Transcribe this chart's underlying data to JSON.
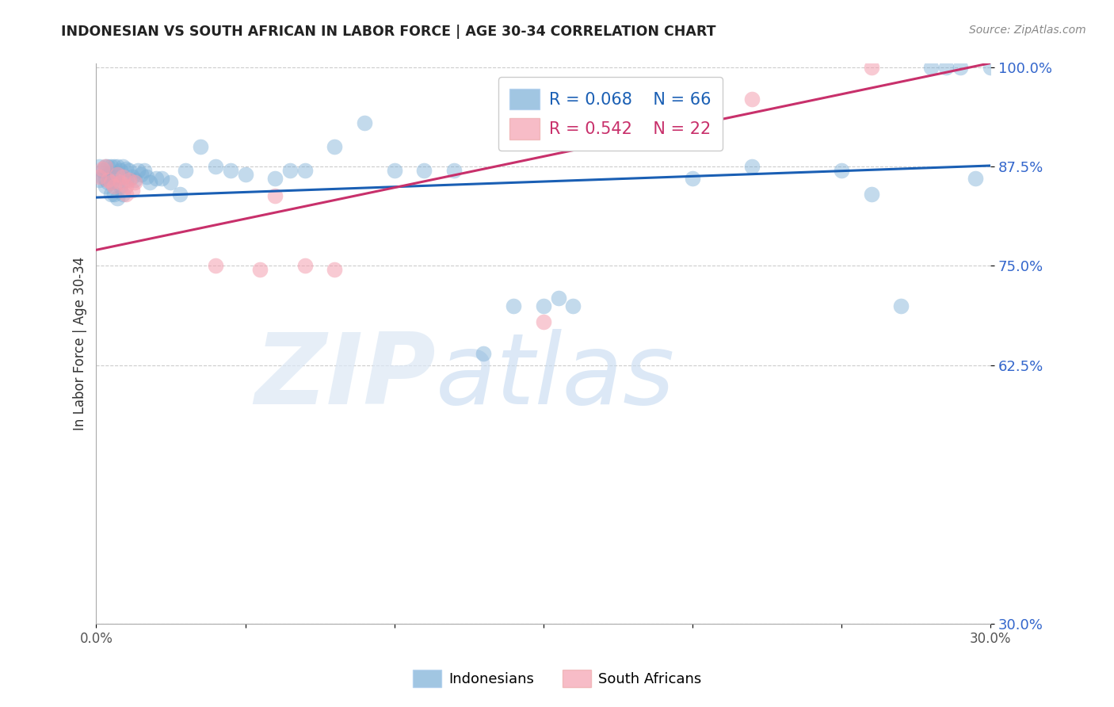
{
  "title": "INDONESIAN VS SOUTH AFRICAN IN LABOR FORCE | AGE 30-34 CORRELATION CHART",
  "source": "Source: ZipAtlas.com",
  "ylabel": "In Labor Force | Age 30-34",
  "xlim": [
    0.0,
    0.3
  ],
  "ylim": [
    0.3,
    1.005
  ],
  "yticks": [
    1.0,
    0.875,
    0.75,
    0.625,
    0.3
  ],
  "ytick_labels": [
    "100.0%",
    "87.5%",
    "75.0%",
    "62.5%",
    "30.0%"
  ],
  "xticks": [
    0.0,
    0.05,
    0.1,
    0.15,
    0.2,
    0.25,
    0.3
  ],
  "xtick_labels": [
    "0.0%",
    "",
    "",
    "",
    "",
    "",
    "30.0%"
  ],
  "legend_blue_r": "R = 0.068",
  "legend_blue_n": "N = 66",
  "legend_pink_r": "R = 0.542",
  "legend_pink_n": "N = 22",
  "blue_color": "#7aaed6",
  "pink_color": "#f4a0b0",
  "line_blue_color": "#1a5fb4",
  "line_pink_color": "#c8306b",
  "watermark_zip": "ZIP",
  "watermark_atlas": "atlas",
  "legend_label_blue": "Indonesians",
  "legend_label_pink": "South Africans",
  "indonesian_x": [
    0.001,
    0.001,
    0.002,
    0.002,
    0.003,
    0.003,
    0.003,
    0.004,
    0.004,
    0.004,
    0.005,
    0.005,
    0.005,
    0.005,
    0.006,
    0.006,
    0.006,
    0.007,
    0.007,
    0.007,
    0.008,
    0.008,
    0.009,
    0.009,
    0.01,
    0.01,
    0.011,
    0.012,
    0.013,
    0.014,
    0.015,
    0.016,
    0.017,
    0.018,
    0.02,
    0.022,
    0.025,
    0.028,
    0.03,
    0.035,
    0.04,
    0.045,
    0.05,
    0.06,
    0.065,
    0.07,
    0.08,
    0.09,
    0.1,
    0.11,
    0.12,
    0.13,
    0.14,
    0.15,
    0.155,
    0.16,
    0.2,
    0.22,
    0.25,
    0.26,
    0.27,
    0.28,
    0.285,
    0.29,
    0.295,
    0.3
  ],
  "indonesian_y": [
    0.875,
    0.858,
    0.87,
    0.862,
    0.875,
    0.86,
    0.85,
    0.875,
    0.865,
    0.855,
    0.875,
    0.862,
    0.855,
    0.84,
    0.875,
    0.862,
    0.84,
    0.875,
    0.855,
    0.835,
    0.87,
    0.85,
    0.875,
    0.84,
    0.872,
    0.858,
    0.87,
    0.862,
    0.858,
    0.87,
    0.865,
    0.87,
    0.862,
    0.855,
    0.86,
    0.86,
    0.855,
    0.84,
    0.87,
    0.9,
    0.875,
    0.87,
    0.865,
    0.86,
    0.87,
    0.87,
    0.9,
    0.93,
    0.87,
    0.87,
    0.87,
    0.64,
    0.7,
    0.7,
    0.71,
    0.7,
    0.86,
    0.875,
    0.87,
    0.84,
    0.7,
    1.0,
    1.0,
    1.0,
    0.86,
    1.0
  ],
  "southafrican_x": [
    0.001,
    0.002,
    0.003,
    0.004,
    0.005,
    0.006,
    0.007,
    0.008,
    0.009,
    0.01,
    0.01,
    0.011,
    0.012,
    0.013,
    0.04,
    0.055,
    0.06,
    0.07,
    0.08,
    0.15,
    0.22,
    0.26
  ],
  "southafrican_y": [
    0.862,
    0.872,
    0.875,
    0.858,
    0.855,
    0.85,
    0.865,
    0.855,
    0.862,
    0.85,
    0.84,
    0.858,
    0.845,
    0.855,
    0.75,
    0.745,
    0.838,
    0.75,
    0.745,
    0.68,
    0.96,
    1.0
  ],
  "blue_line_x0": 0.0,
  "blue_line_y0": 0.836,
  "blue_line_x1": 0.3,
  "blue_line_y1": 0.876,
  "pink_line_x0": 0.0,
  "pink_line_y0": 0.77,
  "pink_line_x1": 0.3,
  "pink_line_y1": 1.005
}
